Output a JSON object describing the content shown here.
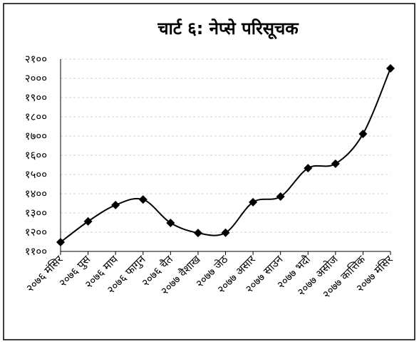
{
  "chart_data": {
    "type": "line",
    "title": "चार्ट ६: नेप्से परिसूचक",
    "categories": [
      "२०७६ मंसिर",
      "२०७६ पुस",
      "२०७६ माघ",
      "२०७६ फागुन",
      "२०७६ चैत",
      "२०७७ वैशाख",
      "२०७७ जेठ",
      "२०७७ असार",
      "२०७७ साउन",
      "२०७७ भदौ",
      "२०७७ असोज",
      "२०७७ कात्तिक",
      "२०७७ मंसिर"
    ],
    "values": [
      1148,
      1256,
      1341,
      1370,
      1248,
      1196,
      1197,
      1356,
      1385,
      1533,
      1556,
      1711,
      2052
    ],
    "color": "#000000",
    "ylim": [
      1100,
      2100
    ],
    "yticks": [
      {
        "value": 1100,
        "label": "११००"
      },
      {
        "value": 1200,
        "label": "१२००"
      },
      {
        "value": 1300,
        "label": "१३००"
      },
      {
        "value": 1400,
        "label": "१४००"
      },
      {
        "value": 1500,
        "label": "१५००"
      },
      {
        "value": 1600,
        "label": "१६००"
      },
      {
        "value": 1700,
        "label": "१७००"
      },
      {
        "value": 1800,
        "label": "१८००"
      },
      {
        "value": 1900,
        "label": "१९००"
      },
      {
        "value": 2000,
        "label": "२०००"
      },
      {
        "value": 2100,
        "label": "२१००"
      }
    ],
    "grid": true,
    "smooth": true
  }
}
